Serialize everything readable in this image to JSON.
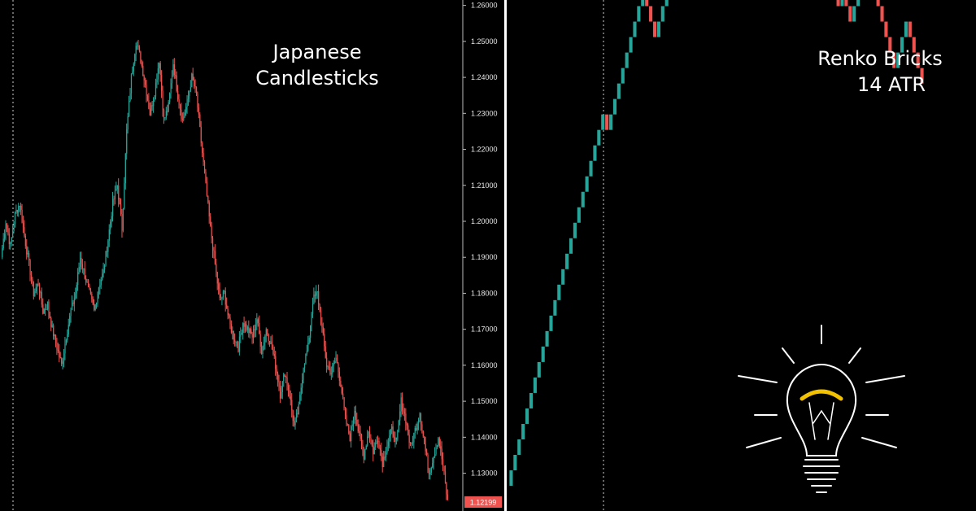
{
  "colors": {
    "background": "#000000",
    "bull": "#26a69a",
    "bear": "#ef5350",
    "divider": "#ffffff",
    "text": "#ffffff",
    "price_tag_bg": "#ef5350",
    "bulb_glow": "#f2c200"
  },
  "left_panel": {
    "title_line1": "Japanese",
    "title_line2": "Candlesticks"
  },
  "right_panel": {
    "title_line1": "Renko Bricks",
    "title_line2": "14 ATR"
  },
  "decoration": {
    "icon": "light-bulb-icon"
  },
  "chart_data": [
    {
      "type": "candlestick",
      "title": "Japanese Candlesticks",
      "xlabel": "",
      "ylabel": "",
      "ylim": [
        1.1195,
        1.2615
      ],
      "yticks": [
        "1.26000",
        "1.25000",
        "1.24000",
        "1.23000",
        "1.22000",
        "1.21000",
        "1.20000",
        "1.19000",
        "1.18000",
        "1.17000",
        "1.16000",
        "1.15000",
        "1.14000",
        "1.13000"
      ],
      "last_price": "1.12199",
      "grid": false,
      "close_path": [
        1.19,
        1.2,
        1.193,
        1.202,
        1.205,
        1.196,
        1.188,
        1.18,
        1.183,
        1.175,
        1.177,
        1.17,
        1.165,
        1.16,
        1.168,
        1.175,
        1.18,
        1.19,
        1.185,
        1.18,
        1.175,
        1.182,
        1.186,
        1.195,
        1.205,
        1.21,
        1.198,
        1.225,
        1.24,
        1.25,
        1.245,
        1.238,
        1.23,
        1.236,
        1.245,
        1.228,
        1.232,
        1.244,
        1.235,
        1.228,
        1.233,
        1.24,
        1.235,
        1.222,
        1.21,
        1.198,
        1.188,
        1.178,
        1.18,
        1.172,
        1.168,
        1.165,
        1.172,
        1.17,
        1.168,
        1.173,
        1.164,
        1.17,
        1.166,
        1.16,
        1.152,
        1.158,
        1.152,
        1.143,
        1.148,
        1.16,
        1.165,
        1.178,
        1.18,
        1.17,
        1.16,
        1.158,
        1.162,
        1.155,
        1.145,
        1.14,
        1.148,
        1.14,
        1.135,
        1.142,
        1.136,
        1.14,
        1.133,
        1.138,
        1.142,
        1.138,
        1.15,
        1.145,
        1.137,
        1.142,
        1.147,
        1.138,
        1.13,
        1.135,
        1.14,
        1.132,
        1.122
      ],
      "candles_per_segment": 4,
      "volatility": 0.0026,
      "seed": 7
    },
    {
      "type": "renko",
      "title": "Renko Bricks 14 ATR",
      "xlabel": "",
      "ylabel": "",
      "brick_size": 0.0043,
      "start_price": 1.1265,
      "ylim": [
        1.1195,
        1.2615
      ],
      "directions": "UUUUUUUUUUUUUUUUUUUUUUUUDUUUUUUUUUDDDUUUUUUUUUUUUUUDUUUUDDUDDUDDDDDDDDDDDUUUDDDDUDDUDDUUUUDDDDDDDUUUDDDD"
    }
  ]
}
